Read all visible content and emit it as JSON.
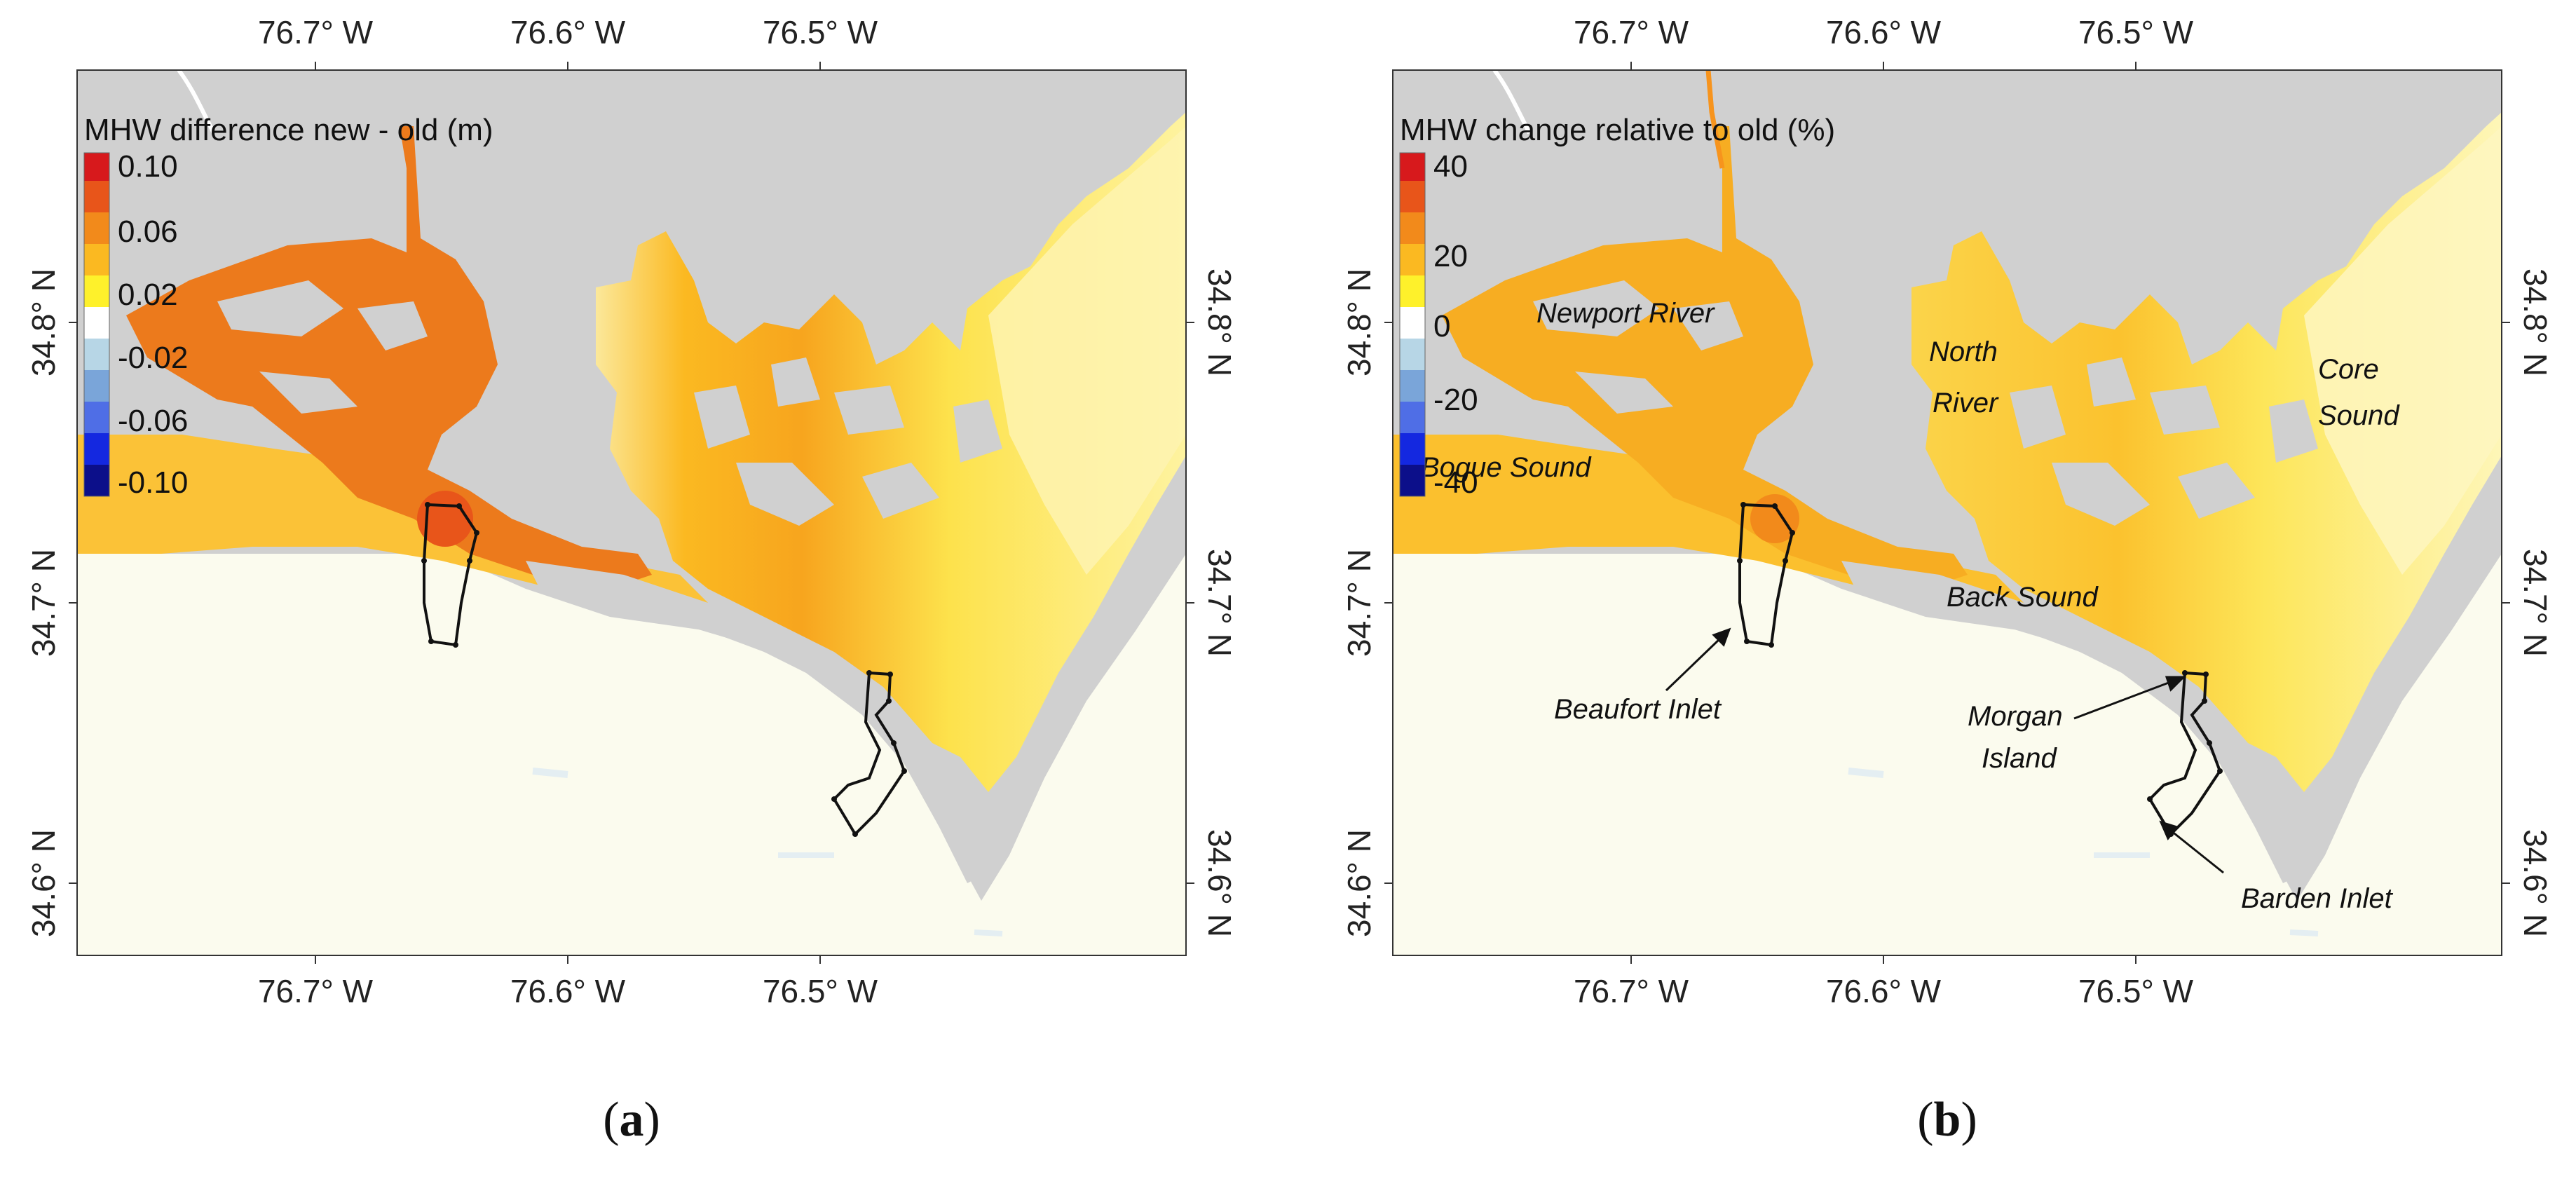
{
  "colors": {
    "land": "#d0d0d0",
    "ocean": "#fbfbee",
    "ramp": [
      "#d7191c",
      "#e8551a",
      "#f28a1b",
      "#fbb921",
      "#fef12b",
      "#ffffff",
      "#b7d6e6",
      "#7aa5d9",
      "#4f6ee6",
      "#1428e0",
      "#0c0f8a"
    ]
  },
  "panel_a": {
    "legend_title": "MHW difference new - old (m)",
    "legend_labels": [
      "0.10",
      "0.06",
      "0.02",
      "-0.02",
      "-0.06",
      "-0.10"
    ],
    "top_ticks": [
      "76.7° W",
      "76.6° W",
      "76.5° W"
    ],
    "bottom_ticks": [
      "76.7° W",
      "76.6° W",
      "76.5° W"
    ],
    "left_ticks": [
      "34.8° N",
      "34.7° N",
      "34.6° N"
    ],
    "right_ticks": [
      "34.8° N",
      "34.7° N",
      "34.6° N"
    ],
    "caption_open": "(",
    "caption_letter": "a",
    "caption_close": ")"
  },
  "panel_b": {
    "legend_title": "MHW change relative to old (%)",
    "legend_labels": [
      "40",
      "20",
      "0",
      "-20",
      "-40"
    ],
    "top_ticks": [
      "76.7° W",
      "76.6° W",
      "76.5° W"
    ],
    "bottom_ticks": [
      "76.7° W",
      "76.6° W",
      "76.5° W"
    ],
    "left_ticks": [
      "34.8° N",
      "34.7° N",
      "34.6° N"
    ],
    "right_ticks": [
      "34.8° N",
      "34.7° N",
      "34.6° N"
    ],
    "places": {
      "newport_river": "Newport River",
      "north": "North",
      "river": "River",
      "core": "Core",
      "sound": "Sound",
      "bogue_sound": "Bogue Sound",
      "back_sound": "Back Sound",
      "beaufort_inlet": "Beaufort Inlet",
      "morgan": "Morgan",
      "island": "Island",
      "barden_inlet": "Barden Inlet"
    },
    "caption_open": "(",
    "caption_letter": "b",
    "caption_close": ")"
  }
}
